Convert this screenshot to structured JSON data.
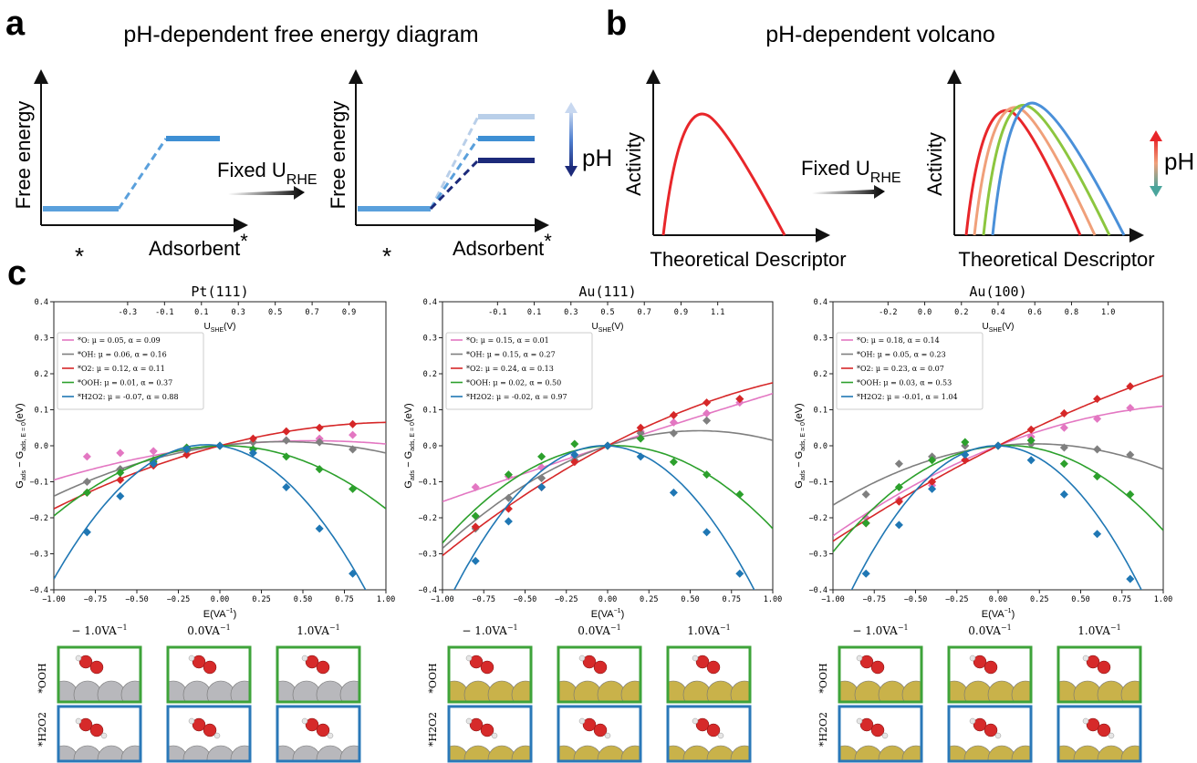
{
  "panel_a": {
    "letter": "a",
    "title": "pH-dependent free energy diagram",
    "y_label": "Free energy",
    "x_left": "*",
    "x_right": "Adsorbent",
    "x_right_sup": "*",
    "arrow_text": "Fixed U",
    "arrow_sub": "RHE",
    "ph_label": "pH"
  },
  "panel_b": {
    "letter": "b",
    "title": "pH-dependent volcano",
    "y_label": "Activity",
    "x_label": "Theoretical Descriptor",
    "arrow_text": "Fixed U",
    "arrow_sub": "RHE",
    "ph_label": "pH",
    "colors": [
      "#e8262a",
      "#f0a07a",
      "#8cc63f",
      "#4a90d9"
    ]
  },
  "panel_c": {
    "letter": "c",
    "y_label_main": "G",
    "y_label_sub1": "ads",
    "y_label_mid": " − G",
    "y_label_sub2": "ads, E = 0",
    "y_label_unit": "(eV)",
    "x_label": "E(VA",
    "x_label_sup": "−1",
    "top_label": "U",
    "top_label_sub": "SHE",
    "top_label_unit": "(V)",
    "field_labels": [
      "− 1.0VA",
      "0.0VA",
      "1.0VA"
    ],
    "field_sup": "−1",
    "row_labels": [
      "*OOH",
      "*H2O2"
    ],
    "frame_colors": [
      "#3ea33a",
      "#2a78b8"
    ],
    "atom_colors": {
      "Pt": "#b8b8bc",
      "Au": "#c9b24a",
      "O": "#d62a2a",
      "H": "#e6e6e6"
    }
  },
  "chart_data": [
    {
      "type": "scatter",
      "title": "Pt(111)",
      "xlabel": "E(VA−1)",
      "ylabel": "Gads − Gads, E = 0(eV)",
      "xlim": [
        -1.0,
        1.0
      ],
      "ylim": [
        -0.4,
        0.4
      ],
      "x_ticks": [
        -1.0,
        -0.75,
        -0.5,
        -0.25,
        0.0,
        0.25,
        0.5,
        0.75,
        1.0
      ],
      "x_tick_labels": [
        "−1.00",
        "−0.75",
        "−0.50",
        "−0.25",
        "0.00",
        "0.25",
        "0.50",
        "0.75",
        "1.00"
      ],
      "y_ticks": [
        -0.4,
        -0.3,
        -0.2,
        -0.1,
        0.0,
        0.1,
        0.2,
        0.3,
        0.4
      ],
      "y_tick_labels": [
        "−0.4",
        "−0.3",
        "−0.2",
        "−0.1",
        "0.0",
        "0.1",
        "0.2",
        "0.3",
        "0.4"
      ],
      "top_ticks": [
        -0.3,
        -0.1,
        0.1,
        0.3,
        0.5,
        0.7,
        0.9
      ],
      "top_tick_labels": [
        "-0.3",
        "-0.1",
        "0.1",
        "0.3",
        "0.5",
        "0.7",
        "0.9"
      ],
      "top_axis": {
        "xlabel": "USHE(V)",
        "ushe_at_field0": 0.2,
        "ushe_per_field": 0.9
      },
      "legend_position": "top-left",
      "x_points": [
        -0.8,
        -0.6,
        -0.4,
        -0.2,
        0.0,
        0.2,
        0.4,
        0.6,
        0.8
      ],
      "series": [
        {
          "name": "*O: μ = 0.05, α = 0.09",
          "color": "#e377c2",
          "mu": 0.05,
          "alpha": 0.09,
          "points": [
            -0.03,
            -0.02,
            -0.015,
            -0.005,
            0.0,
            0.01,
            0.015,
            0.02,
            0.03
          ]
        },
        {
          "name": "*OH: μ = 0.06, α = 0.16",
          "color": "#7f7f7f",
          "mu": 0.06,
          "alpha": 0.16,
          "points": [
            -0.1,
            -0.065,
            -0.04,
            -0.015,
            0.0,
            0.01,
            0.015,
            0.01,
            -0.01
          ]
        },
        {
          "name": "*O2: μ = 0.12, α = 0.11",
          "color": "#d62728",
          "mu": 0.12,
          "alpha": 0.11,
          "points": [
            -0.13,
            -0.095,
            -0.055,
            -0.025,
            0.0,
            0.02,
            0.04,
            0.05,
            0.06
          ]
        },
        {
          "name": "*OOH: μ = 0.01, α = 0.37",
          "color": "#2ca02c",
          "mu": 0.01,
          "alpha": 0.37,
          "points": [
            -0.13,
            -0.075,
            -0.045,
            -0.005,
            0.0,
            -0.01,
            -0.03,
            -0.065,
            -0.12
          ]
        },
        {
          "name": "*H2O2: μ = -0.07, α = 0.88",
          "color": "#1f77b4",
          "mu": -0.07,
          "alpha": 0.88,
          "points": [
            -0.24,
            -0.14,
            -0.05,
            -0.01,
            0.0,
            -0.02,
            -0.115,
            -0.23,
            -0.355
          ]
        }
      ]
    },
    {
      "type": "scatter",
      "title": "Au(111)",
      "xlabel": "E(VA−1)",
      "ylabel": "Gads − Gads, E = 0(eV)",
      "xlim": [
        -1.0,
        1.0
      ],
      "ylim": [
        -0.4,
        0.4
      ],
      "x_ticks": [
        -1.0,
        -0.75,
        -0.5,
        -0.25,
        0.0,
        0.25,
        0.5,
        0.75,
        1.0
      ],
      "x_tick_labels": [
        "−1.00",
        "−0.75",
        "−0.50",
        "−0.25",
        "0.00",
        "0.25",
        "0.50",
        "0.75",
        "1.00"
      ],
      "y_ticks": [
        -0.4,
        -0.3,
        -0.2,
        -0.1,
        0.0,
        0.1,
        0.2,
        0.3,
        0.4
      ],
      "y_tick_labels": [
        "−0.4",
        "−0.3",
        "−0.2",
        "−0.1",
        "0.0",
        "0.1",
        "0.2",
        "0.3",
        "0.4"
      ],
      "top_ticks": [
        -0.1,
        0.1,
        0.3,
        0.5,
        0.7,
        0.9,
        1.1
      ],
      "top_tick_labels": [
        "-0.1",
        "0.1",
        "0.3",
        "0.5",
        "0.7",
        "0.9",
        "1.1"
      ],
      "top_axis": {
        "xlabel": "USHE(V)",
        "ushe_at_field0": 0.5,
        "ushe_per_field": 0.9
      },
      "legend_position": "top-left",
      "x_points": [
        -0.8,
        -0.6,
        -0.4,
        -0.2,
        0.0,
        0.2,
        0.4,
        0.6,
        0.8
      ],
      "series": [
        {
          "name": "*O: μ = 0.15, α = 0.01",
          "color": "#e377c2",
          "mu": 0.15,
          "alpha": 0.01,
          "points": [
            -0.115,
            -0.085,
            -0.06,
            -0.03,
            0.0,
            0.04,
            0.065,
            0.09,
            0.12
          ]
        },
        {
          "name": "*OH: μ = 0.15, α = 0.27",
          "color": "#7f7f7f",
          "mu": 0.15,
          "alpha": 0.27,
          "points": [
            -0.23,
            -0.145,
            -0.09,
            -0.04,
            0.0,
            0.035,
            0.035,
            0.07,
            0.13
          ]
        },
        {
          "name": "*O2: μ = 0.24, α = 0.13",
          "color": "#d62728",
          "mu": 0.24,
          "alpha": 0.13,
          "points": [
            -0.225,
            -0.175,
            -0.115,
            -0.045,
            0.0,
            0.05,
            0.085,
            0.12,
            0.13
          ]
        },
        {
          "name": "*OOH: μ = 0.02, α = 0.50",
          "color": "#2ca02c",
          "mu": 0.02,
          "alpha": 0.5,
          "points": [
            -0.195,
            -0.08,
            -0.03,
            0.005,
            0.0,
            0.02,
            -0.045,
            -0.08,
            -0.135
          ]
        },
        {
          "name": "*H2O2: μ = -0.02, α = 0.97",
          "color": "#1f77b4",
          "mu": -0.02,
          "alpha": 0.97,
          "points": [
            -0.32,
            -0.21,
            -0.115,
            -0.025,
            0.0,
            -0.03,
            -0.13,
            -0.24,
            -0.355
          ]
        }
      ]
    },
    {
      "type": "scatter",
      "title": "Au(100)",
      "xlabel": "E(VA−1)",
      "ylabel": "Gads − Gads, E = 0(eV)",
      "xlim": [
        -1.0,
        1.0
      ],
      "ylim": [
        -0.4,
        0.4
      ],
      "x_ticks": [
        -1.0,
        -0.75,
        -0.5,
        -0.25,
        0.0,
        0.25,
        0.5,
        0.75,
        1.0
      ],
      "x_tick_labels": [
        "−1.00",
        "−0.75",
        "−0.50",
        "−0.25",
        "0.00",
        "0.25",
        "0.50",
        "0.75",
        "1.00"
      ],
      "y_ticks": [
        -0.4,
        -0.3,
        -0.2,
        -0.1,
        0.0,
        0.1,
        0.2,
        0.3,
        0.4
      ],
      "y_tick_labels": [
        "−0.4",
        "−0.3",
        "−0.2",
        "−0.1",
        "0.0",
        "0.1",
        "0.2",
        "0.3",
        "0.4"
      ],
      "top_ticks": [
        -0.2,
        0.0,
        0.2,
        0.4,
        0.6,
        0.8,
        1.0
      ],
      "top_tick_labels": [
        "-0.2",
        "0.0",
        "0.2",
        "0.4",
        "0.6",
        "0.8",
        "1.0"
      ],
      "top_axis": {
        "xlabel": "USHE(V)",
        "ushe_at_field0": 0.4,
        "ushe_per_field": 0.9
      },
      "legend_position": "top-left",
      "x_points": [
        -0.8,
        -0.6,
        -0.4,
        -0.2,
        0.0,
        0.2,
        0.4,
        0.6,
        0.8
      ],
      "series": [
        {
          "name": "*O: μ = 0.18, α = 0.14",
          "color": "#e377c2",
          "mu": 0.18,
          "alpha": 0.14,
          "points": [
            -0.2,
            -0.15,
            -0.11,
            -0.04,
            0.0,
            0.025,
            0.05,
            0.075,
            0.105
          ]
        },
        {
          "name": "*OH: μ = 0.05, α = 0.23",
          "color": "#7f7f7f",
          "mu": 0.05,
          "alpha": 0.23,
          "points": [
            -0.135,
            -0.05,
            -0.03,
            0.0,
            0.0,
            0.005,
            -0.005,
            -0.01,
            -0.025
          ]
        },
        {
          "name": "*O2: μ = 0.23, α = 0.07",
          "color": "#d62728",
          "mu": 0.23,
          "alpha": 0.07,
          "points": [
            -0.215,
            -0.155,
            -0.1,
            -0.04,
            0.0,
            0.045,
            0.09,
            0.13,
            0.165
          ]
        },
        {
          "name": "*OOH: μ = 0.03, α = 0.53",
          "color": "#2ca02c",
          "mu": 0.03,
          "alpha": 0.53,
          "points": [
            -0.215,
            -0.115,
            -0.04,
            0.01,
            0.0,
            0.015,
            -0.05,
            -0.085,
            -0.135
          ]
        },
        {
          "name": "*H2O2: μ = -0.01, α = 1.04",
          "color": "#1f77b4",
          "mu": -0.01,
          "alpha": 1.04,
          "points": [
            -0.355,
            -0.22,
            -0.12,
            -0.025,
            0.0,
            -0.04,
            -0.135,
            -0.245,
            -0.37
          ]
        }
      ]
    }
  ]
}
